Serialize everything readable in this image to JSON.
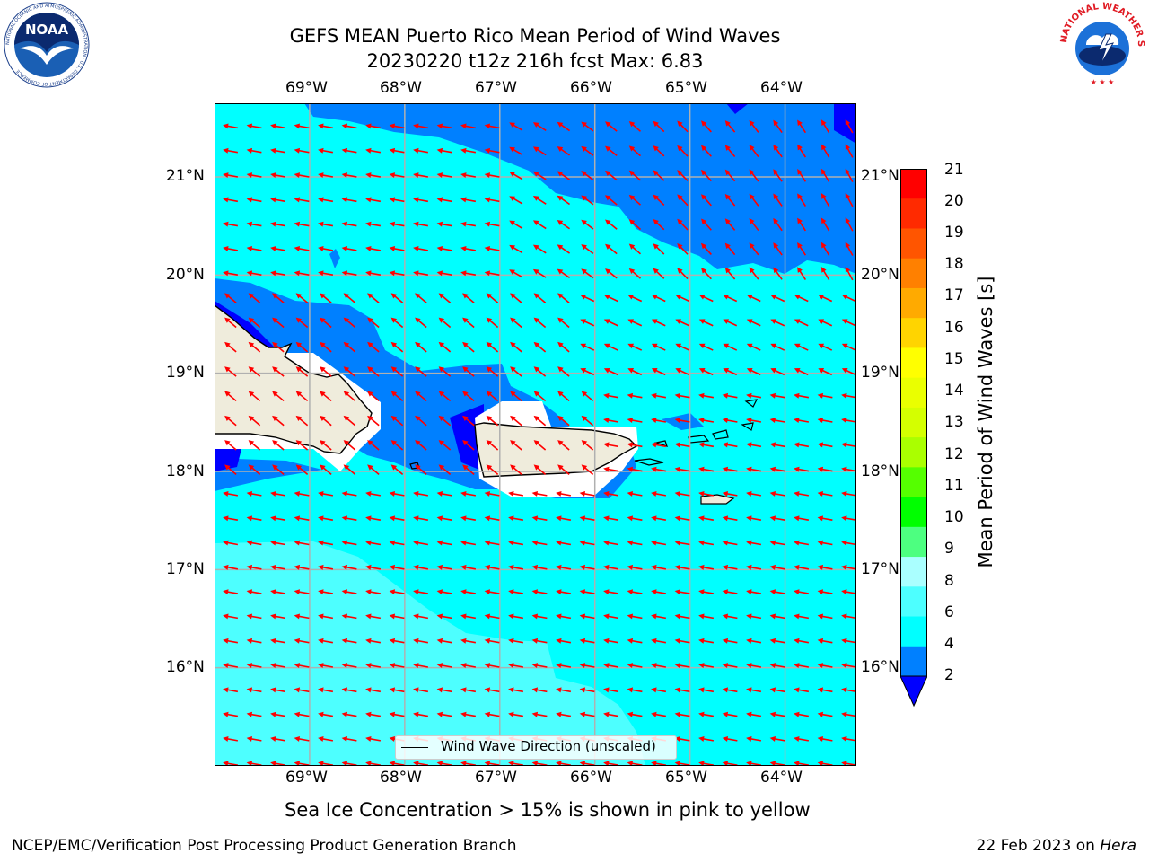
{
  "title": {
    "line1": "GEFS MEAN Puerto Rico Mean Period of Wind Waves",
    "line2": "20230220 t12z 216h fcst   Max: 6.83"
  },
  "logos": {
    "noaa_text": "NOAA",
    "noaa_ring": "NATIONAL OCEANIC AND ATMOSPHERIC ADMINISTRATION · U.S. DEPARTMENT OF COMMERCE",
    "nws_ring": "NATIONAL WEATHER SERVICE",
    "noaa_icon": "noaa-seagull-icon",
    "nws_icon": "nws-cloud-lightning-icon"
  },
  "map": {
    "lon_ticks": [
      "69°W",
      "68°W",
      "67°W",
      "66°W",
      "65°W",
      "64°W"
    ],
    "lat_ticks": [
      "21°N",
      "20°N",
      "19°N",
      "18°N",
      "17°N",
      "16°N"
    ],
    "lon_extent": [
      -70.0,
      -63.25
    ],
    "lat_extent": [
      15.0,
      21.75
    ],
    "gridlines": true,
    "arrow_color": "#ff0000",
    "arrow_direction": "westward",
    "land_color": "#efecdc",
    "colors": {
      "band_2_4": "#0080ff",
      "band_4_6": "#00ffff",
      "band_6_8": "#4dffff",
      "under_2": "#0000ff"
    }
  },
  "legend": {
    "label": "Wind Wave Direction (unscaled)"
  },
  "colorbar": {
    "title": "Mean Period of Wind Waves [s]",
    "labels": [
      "21",
      "20",
      "19",
      "18",
      "17",
      "16",
      "15",
      "14",
      "13",
      "12",
      "11",
      "10",
      "9",
      "8",
      "6",
      "4",
      "2"
    ],
    "colors": [
      "#ff0000",
      "#ff2a00",
      "#ff5500",
      "#ff8000",
      "#ffaa00",
      "#ffd400",
      "#ffff00",
      "#eaff00",
      "#d4ff00",
      "#aaff00",
      "#55ff00",
      "#00ff00",
      "#4dff80",
      "#aaffff",
      "#4dffff",
      "#00ffff",
      "#0080ff"
    ],
    "under_color": "#0000ff"
  },
  "note": "Sea Ice Concentration > 15% is shown in pink to yellow",
  "footer": {
    "left": "NCEP/EMC/Verification Post Processing Product Generation Branch",
    "date": "22 Feb 2023 on ",
    "host": "Hera"
  }
}
